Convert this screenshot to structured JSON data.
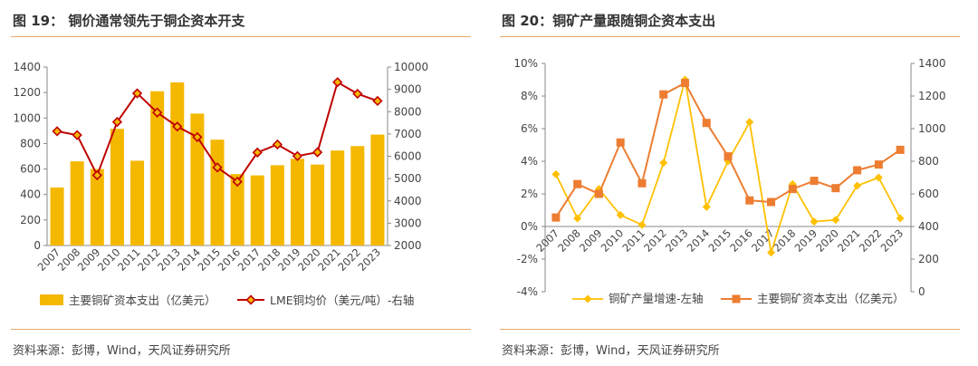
{
  "left": {
    "title": "图 19：  铜价通常领先于铜企资本开支",
    "source": "资料来源：彭博，Wind，天风证券研究所",
    "chart_data": {
      "type": "bar+line",
      "categories": [
        "2007",
        "2008",
        "2009",
        "2010",
        "2011",
        "2012",
        "2013",
        "2014",
        "2015",
        "2016",
        "2017",
        "2018",
        "2019",
        "2020",
        "2021",
        "2022",
        "2023"
      ],
      "series": [
        {
          "name": "主要铜矿资本支出（亿美元）",
          "type": "bar",
          "axis": "left",
          "color": "#F5B800",
          "values": [
            455,
            660,
            600,
            915,
            665,
            1210,
            1280,
            1035,
            830,
            560,
            550,
            630,
            680,
            635,
            745,
            780,
            870
          ]
        },
        {
          "name": "LME铜均价（美元/吨）-右轴",
          "type": "line",
          "axis": "right",
          "color": "#C00000",
          "values": [
            7120,
            6950,
            5150,
            7540,
            8820,
            7960,
            7330,
            6860,
            5500,
            4860,
            6170,
            6530,
            6010,
            6180,
            9320,
            8800,
            8480
          ]
        }
      ],
      "y_left": {
        "min": 0,
        "max": 1400,
        "ticks": [
          0,
          200,
          400,
          600,
          800,
          1000,
          1200,
          1400
        ]
      },
      "y_right": {
        "min": 2000,
        "max": 10000,
        "ticks": [
          2000,
          3000,
          4000,
          5000,
          6000,
          7000,
          8000,
          9000,
          10000
        ]
      },
      "legend": [
        "主要铜矿资本支出（亿美元）",
        "LME铜均价（美元/吨）-右轴"
      ]
    }
  },
  "right": {
    "title": "图 20：铜矿产量跟随铜企资本支出",
    "source": "资料来源：彭博，Wind，天风证券研究所",
    "chart_data": {
      "type": "line",
      "categories": [
        "2007",
        "2008",
        "2009",
        "2010",
        "2011",
        "2012",
        "2013",
        "2014",
        "2015",
        "2016",
        "2017",
        "2018",
        "2019",
        "2020",
        "2021",
        "2022",
        "2023"
      ],
      "series": [
        {
          "name": "铜矿产量增速-左轴",
          "axis": "left",
          "color": "#FFC000",
          "marker": "diamond",
          "values": [
            3.2,
            0.5,
            2.3,
            0.7,
            0.1,
            3.9,
            9.0,
            1.2,
            4.0,
            6.4,
            -1.6,
            2.6,
            0.3,
            0.4,
            2.5,
            3.0,
            0.5
          ]
        },
        {
          "name": "主要铜矿资本支出（亿美元）",
          "axis": "right",
          "color": "#ED7D31",
          "marker": "square",
          "values": [
            455,
            660,
            600,
            915,
            665,
            1210,
            1280,
            1035,
            830,
            560,
            550,
            630,
            680,
            635,
            745,
            780,
            870
          ]
        }
      ],
      "y_left": {
        "min": -4,
        "max": 10,
        "ticks": [
          "-4%",
          "-2%",
          "0%",
          "2%",
          "4%",
          "6%",
          "8%",
          "10%"
        ],
        "tick_values": [
          -4,
          -2,
          0,
          2,
          4,
          6,
          8,
          10
        ]
      },
      "y_right": {
        "min": 0,
        "max": 1400,
        "ticks": [
          0,
          200,
          400,
          600,
          800,
          1000,
          1200,
          1400
        ]
      },
      "legend": [
        "铜矿产量增速-左轴",
        "主要铜矿资本支出（亿美元）"
      ]
    }
  }
}
